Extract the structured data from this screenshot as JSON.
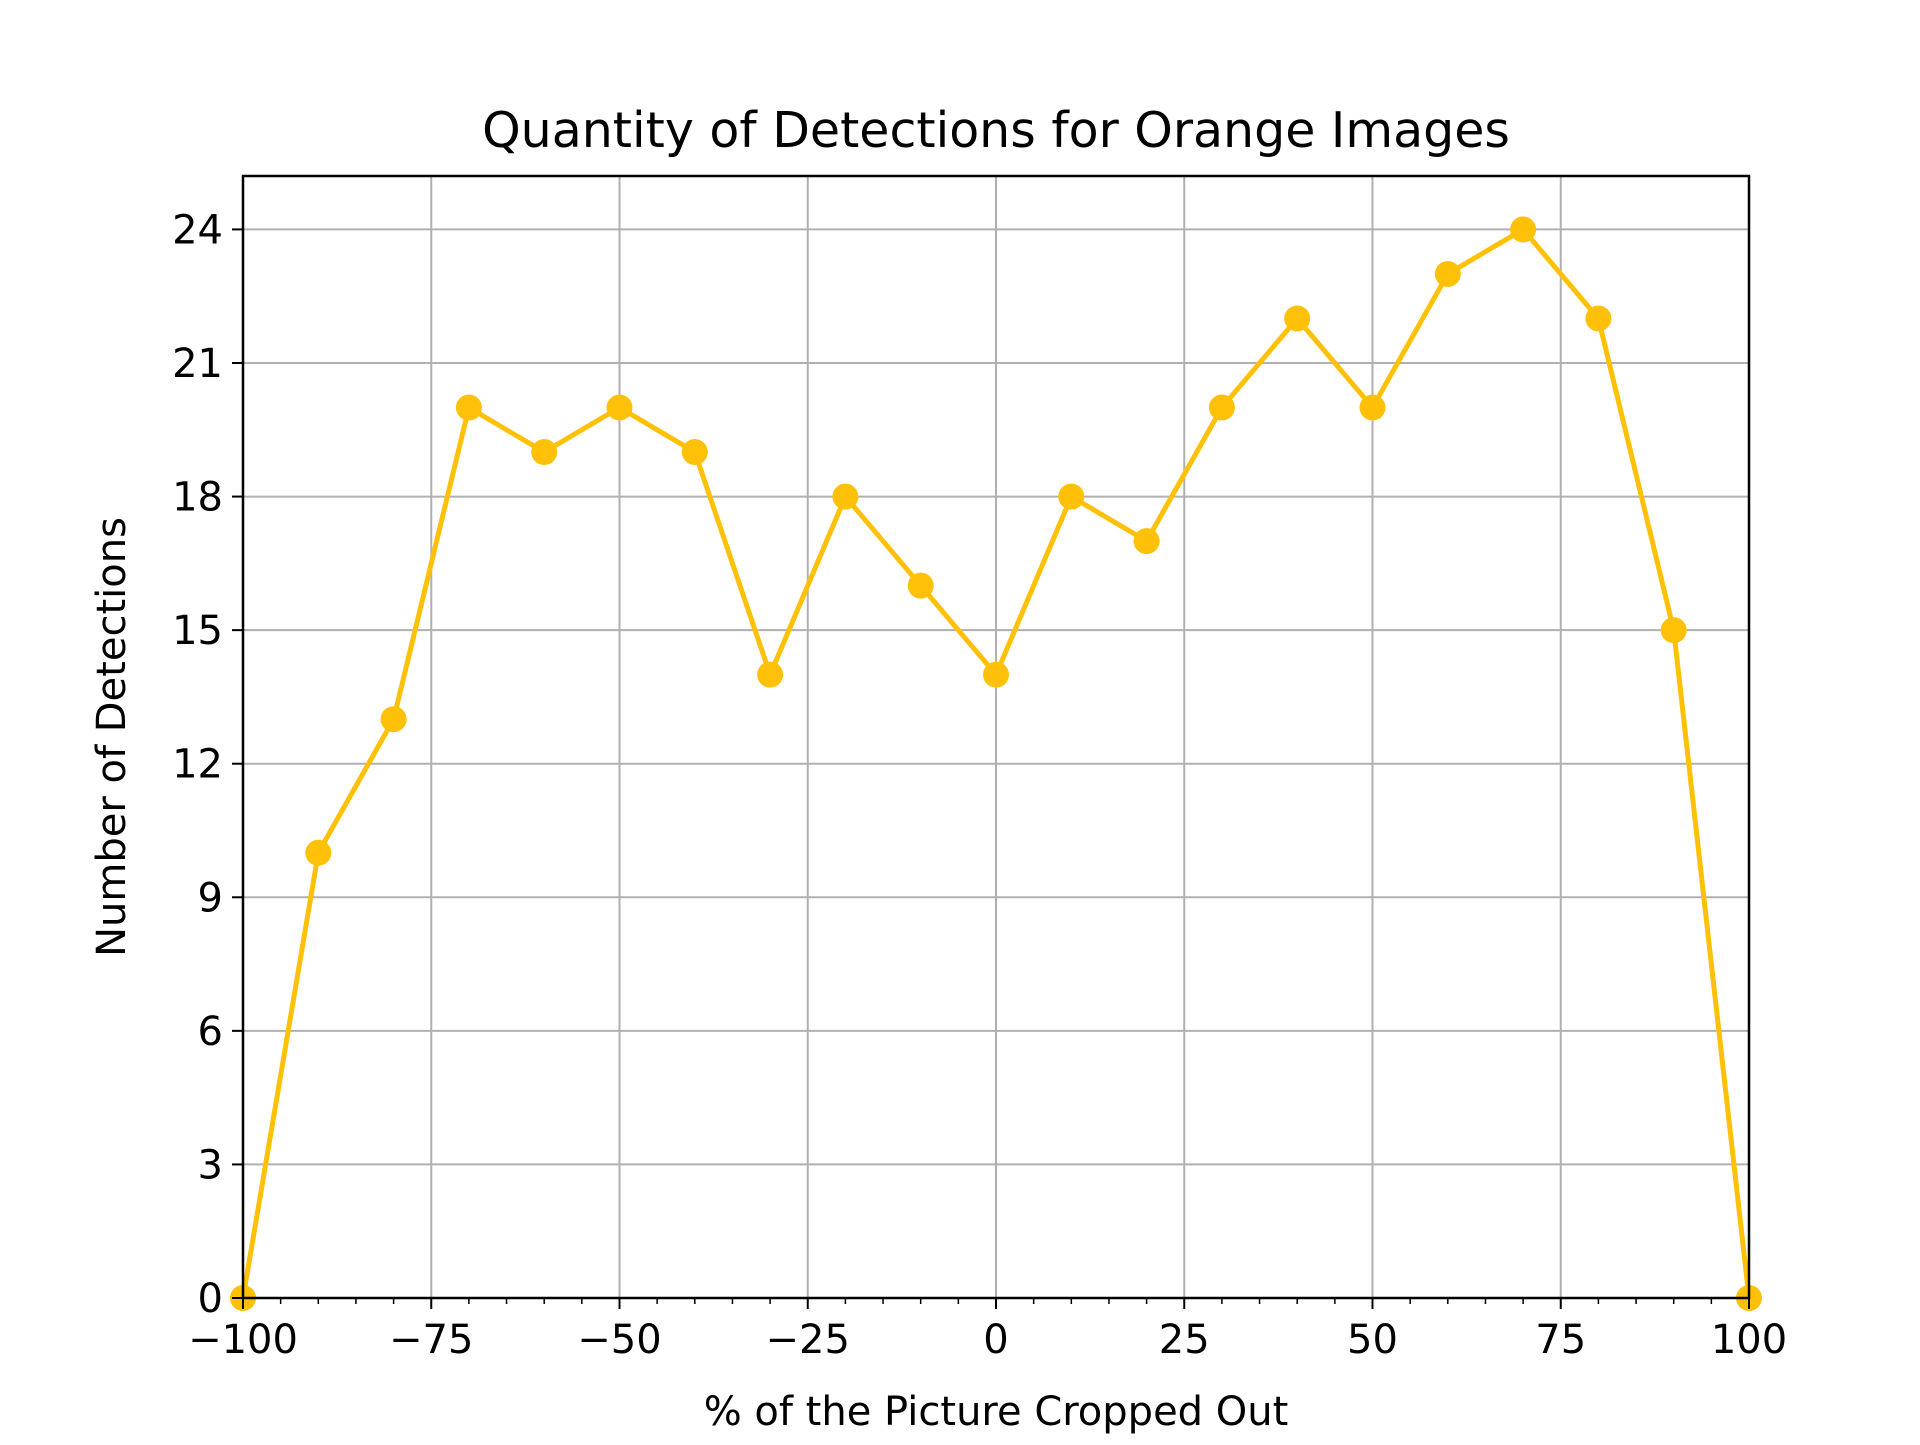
{
  "chart_data": {
    "type": "line",
    "title": "Quantity of Detections for Orange Images",
    "xlabel": "% of the Picture Cropped Out",
    "ylabel": "Number of Detections",
    "xlim": [
      -100,
      100
    ],
    "ylim": [
      0,
      25.2
    ],
    "xticks": [
      -100,
      -75,
      -50,
      -25,
      0,
      25,
      50,
      75,
      100
    ],
    "xtick_labels": [
      "−100",
      "−75",
      "−50",
      "−25",
      "0",
      "25",
      "50",
      "75",
      "100"
    ],
    "x_minor_ticks": [
      -95,
      -90,
      -85,
      -80,
      -70,
      -65,
      -60,
      -55,
      -45,
      -40,
      -35,
      -30,
      -20,
      -15,
      -10,
      -5,
      5,
      10,
      15,
      20,
      30,
      35,
      40,
      45,
      55,
      60,
      65,
      70,
      80,
      85,
      90,
      95
    ],
    "yticks": [
      0,
      3,
      6,
      9,
      12,
      15,
      18,
      21,
      24
    ],
    "ytick_labels": [
      "0",
      "3",
      "6",
      "9",
      "12",
      "15",
      "18",
      "21",
      "24"
    ],
    "grid": true,
    "color": "#FFC107",
    "series": [
      {
        "x": [
          -100,
          -90,
          -80,
          -70,
          -60,
          -50,
          -40,
          -30,
          -20,
          -10,
          0,
          10,
          20,
          30,
          40,
          50,
          60,
          70,
          80,
          90,
          100
        ],
        "values": [
          0,
          10,
          13,
          20,
          19,
          20,
          19,
          14,
          18,
          16,
          14,
          18,
          17,
          20,
          22,
          20,
          23,
          24,
          22,
          15,
          0
        ]
      }
    ]
  }
}
